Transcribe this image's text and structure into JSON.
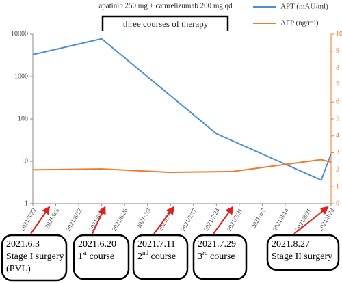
{
  "chart_data": {
    "type": "line",
    "top_note": "apatinib 250 mg + camrelizumab 200 mg qd",
    "bracket_label": "three courses of therapy",
    "x_left": "2021/5/29",
    "xlim": [
      "2021/5/29",
      "2021/8/28"
    ],
    "xticks": [
      "2021/5/29",
      "2021/6/5",
      "2021/6/12",
      "2021/6/19",
      "2021/6/26",
      "2021/7/3",
      "2021/7/10",
      "2021/7/17",
      "2021/7/24",
      "2021/7/31",
      "2021/8/7",
      "2021/8/14",
      "2021/8/21",
      "2021/8/28"
    ],
    "ylim": [
      1,
      10000
    ],
    "yticks": [
      1,
      10,
      100,
      1000,
      10000
    ],
    "log_y": true,
    "y2lim": [
      0,
      10
    ],
    "y2ticks": [
      0,
      1,
      2,
      3,
      4,
      5,
      6,
      7,
      8,
      9,
      10
    ],
    "series": [
      {
        "name": "APT (mAU/ml)",
        "color": "#4a8fd6",
        "x": [
          "2021/5/29",
          "2021/6/19",
          "2021/7/24",
          "2021/8/25",
          "2021/8/28"
        ],
        "values": [
          3300,
          7800,
          45,
          3.6,
          15
        ]
      },
      {
        "name": "AFP (ng/ml)",
        "color": "#ee7a2a",
        "axis": "y2",
        "x": [
          "2021/5/29",
          "2021/6/19",
          "2021/7/10",
          "2021/7/29",
          "2021/8/25",
          "2021/8/28"
        ],
        "values": [
          2.0,
          2.05,
          1.85,
          1.9,
          2.6,
          2.45
        ]
      }
    ],
    "annotations": [
      {
        "date": "2021.6.3",
        "lines": [
          [
            "Stage I surgery"
          ],
          [
            "(PVL)"
          ]
        ]
      },
      {
        "date": "2021.6.20",
        "lines": [
          [
            "1",
            "st",
            " course"
          ]
        ]
      },
      {
        "date": "2021.7.11",
        "lines": [
          [
            "2",
            "nd",
            " course"
          ]
        ]
      },
      {
        "date": "2021.7.29",
        "lines": [
          [
            "3",
            "rd",
            " course"
          ]
        ]
      },
      {
        "date": "2021.8.27",
        "lines": [
          [
            "Stage II surgery"
          ]
        ]
      }
    ]
  }
}
